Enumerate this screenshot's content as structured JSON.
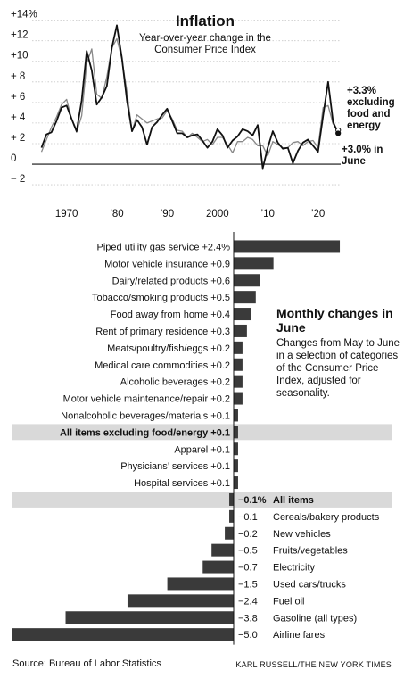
{
  "chart_data": [
    {
      "type": "line",
      "title": "Inflation",
      "subtitle": "Year-over-year change in the Consumer Price Index",
      "y_tick_labels": [
        "+14%",
        "+12",
        "+10",
        "+ 8",
        "+ 6",
        "+ 4",
        "+ 2",
        "0",
        "− 2"
      ],
      "y_ticks": [
        14,
        12,
        10,
        8,
        6,
        4,
        2,
        0,
        -2
      ],
      "x_tick_labels": [
        "1970",
        "’80",
        "’90",
        "2000",
        "’10",
        "’20"
      ],
      "x_ticks": [
        1970,
        1980,
        1990,
        2000,
        2010,
        2020
      ],
      "xlim": [
        1963.5,
        2024.5
      ],
      "ylim": [
        -2.6,
        14.4
      ],
      "grid": true,
      "series": [
        {
          "name": "excluding food and energy",
          "color": "#888888",
          "x": [
            1965,
            1966,
            1967,
            1968,
            1969,
            1970,
            1971,
            1972,
            1973,
            1974,
            1975,
            1976,
            1977,
            1978,
            1979,
            1980,
            1981,
            1982,
            1983,
            1984,
            1985,
            1986,
            1987,
            1988,
            1989,
            1990,
            1991,
            1992,
            1993,
            1994,
            1995,
            1996,
            1997,
            1998,
            1999,
            2000,
            2001,
            2002,
            2003,
            2004,
            2005,
            2006,
            2007,
            2008,
            2009,
            2010,
            2011,
            2012,
            2013,
            2014,
            2015,
            2016,
            2017,
            2018,
            2019,
            2020,
            2021,
            2022,
            2023,
            2024
          ],
          "y": [
            1.2,
            2.4,
            3.6,
            4.6,
            5.8,
            6.3,
            4.4,
            3.1,
            4.7,
            9.8,
            11.2,
            6.8,
            6.4,
            8.5,
            11.3,
            12.2,
            10.2,
            7.1,
            3.2,
            4.8,
            4.4,
            4.0,
            4.2,
            4.4,
            4.5,
            5.2,
            4.4,
            3.3,
            3.2,
            2.6,
            3.0,
            2.6,
            2.2,
            2.4,
            1.9,
            2.6,
            2.6,
            1.9,
            1.1,
            2.2,
            2.2,
            2.6,
            2.4,
            1.8,
            1.8,
            0.8,
            2.2,
            1.9,
            1.6,
            1.6,
            2.1,
            2.2,
            1.8,
            2.2,
            2.3,
            1.6,
            5.5,
            5.7,
            3.9,
            3.3
          ]
        },
        {
          "name": "All items",
          "color": "#111111",
          "x": [
            1965,
            1966,
            1967,
            1968,
            1969,
            1970,
            1971,
            1972,
            1973,
            1974,
            1975,
            1976,
            1977,
            1978,
            1979,
            1980,
            1981,
            1982,
            1983,
            1984,
            1985,
            1986,
            1987,
            1988,
            1989,
            1990,
            1991,
            1992,
            1993,
            1994,
            1995,
            1996,
            1997,
            1998,
            1999,
            2000,
            2001,
            2002,
            2003,
            2004,
            2005,
            2006,
            2007,
            2008,
            2009,
            2010,
            2011,
            2012,
            2013,
            2014,
            2015,
            2016,
            2017,
            2018,
            2019,
            2020,
            2021,
            2022,
            2023,
            2024
          ],
          "y": [
            1.6,
            2.9,
            3.1,
            4.2,
            5.5,
            5.7,
            4.4,
            3.2,
            6.2,
            11.0,
            9.1,
            5.8,
            6.5,
            7.6,
            11.3,
            13.5,
            10.3,
            6.2,
            3.2,
            4.3,
            3.6,
            1.9,
            3.6,
            4.1,
            4.8,
            5.4,
            4.2,
            3.0,
            3.0,
            2.6,
            2.8,
            2.9,
            2.3,
            1.6,
            2.2,
            3.4,
            2.8,
            1.6,
            2.3,
            2.7,
            3.4,
            3.2,
            2.8,
            3.8,
            -0.4,
            1.6,
            3.2,
            2.1,
            1.5,
            1.6,
            0.1,
            1.3,
            2.1,
            2.4,
            1.8,
            1.2,
            4.7,
            8.0,
            4.1,
            3.0
          ]
        }
      ],
      "annotations": [
        {
          "text": "+3.3% excluding food and energy"
        },
        {
          "text": "+3.0% in June"
        }
      ]
    },
    {
      "type": "bar",
      "orientation": "horizontal",
      "title": "Monthly changes in June",
      "subtitle": "Changes from May to June in a selection of categories of the Consumer Price Index, adjusted for seasonality.",
      "categories": [
        "Piped utility gas service",
        "Motor vehicle insurance",
        "Dairy/related products",
        "Tobacco/smoking products",
        "Food away from home",
        "Rent of primary residence",
        "Meats/poultry/fish/eggs",
        "Medical care commodities",
        "Alcoholic beverages",
        "Motor vehicle maintenance/repair",
        "Nonalcoholic beverages/materials",
        "All items excluding food/energy",
        "Apparel",
        "Physicians’ services",
        "Hospital services",
        "All items",
        "Cereals/bakery products",
        "New vehicles",
        "Fruits/vegetables",
        "Electricity",
        "Used cars/trucks",
        "Fuel oil",
        "Gasoline (all types)",
        "Airline fares"
      ],
      "values": [
        2.4,
        0.9,
        0.6,
        0.5,
        0.4,
        0.3,
        0.2,
        0.2,
        0.2,
        0.2,
        0.1,
        0.1,
        0.1,
        0.1,
        0.1,
        -0.1,
        -0.1,
        -0.2,
        -0.5,
        -0.7,
        -1.5,
        -2.4,
        -3.8,
        -5.0
      ],
      "value_labels": [
        "+2.4%",
        "+0.9",
        "+0.6",
        "+0.5",
        "+0.4",
        "+0.3",
        "+0.2",
        "+0.2",
        "+0.2",
        "+0.2",
        "+0.1",
        "+0.1",
        "+0.1",
        "+0.1",
        "+0.1",
        "−0.1%",
        "−0.1",
        "−0.2",
        "−0.5",
        "−0.7",
        "−1.5",
        "−2.4",
        "−3.8",
        "−5.0"
      ],
      "highlighted": [
        "All items excluding food/energy",
        "All items"
      ],
      "xlim": [
        -5.0,
        2.6
      ],
      "bar_color": "#3a3a3a",
      "highlight_color": "#d9d9d9"
    }
  ],
  "source": "Source: Bureau of Labor Statistics",
  "credit": "KARL RUSSELL/THE NEW YORK TIMES"
}
